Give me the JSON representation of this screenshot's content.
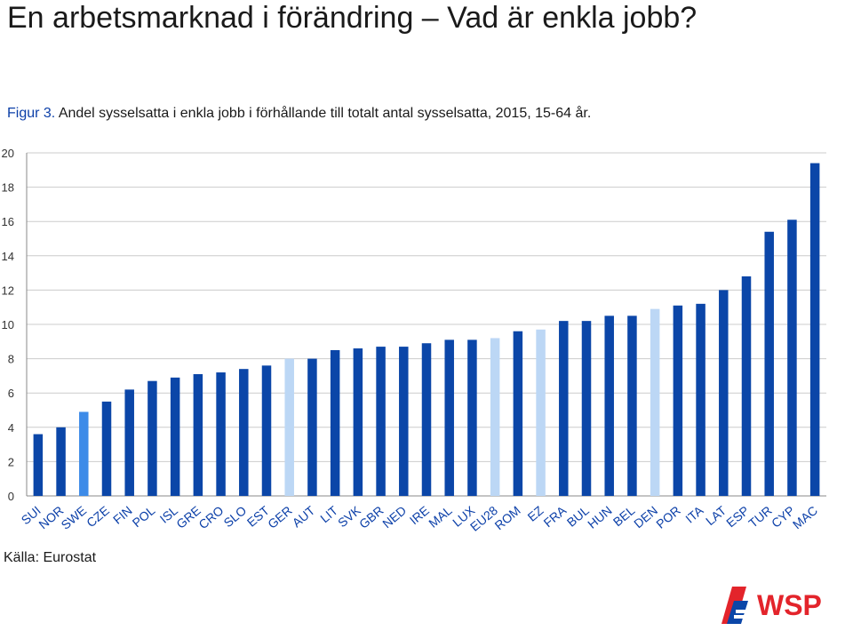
{
  "header": {
    "title": "En arbetsmarknad i förändring – Vad är enkla jobb?"
  },
  "caption": {
    "figure_label": "Figur 3.",
    "text": " Andel sysselsatta i enkla jobb i förhållande till totalt antal sysselsatta, 2015, 15-64 år."
  },
  "source": "Källa: Eurostat",
  "logo": {
    "text": "WSP",
    "color": "#e3242b"
  },
  "colors": {
    "default": "#0b46a8",
    "highlight": "#3d8be8",
    "aggregate": "#bcd7f5",
    "grid": "#cccccc",
    "axis": "#888888"
  },
  "chart_data": {
    "type": "bar",
    "title": "",
    "xlabel": "",
    "ylabel": "",
    "ylim": [
      0,
      20
    ],
    "yticks": [
      0,
      2,
      4,
      6,
      8,
      10,
      12,
      14,
      16,
      18,
      20
    ],
    "grid": true,
    "categories": [
      "SUI",
      "NOR",
      "SWE",
      "CZE",
      "FIN",
      "POL",
      "ISL",
      "GRE",
      "CRO",
      "SLO",
      "EST",
      "GER",
      "AUT",
      "LIT",
      "SVK",
      "GBR",
      "NED",
      "IRE",
      "MAL",
      "LUX",
      "EU28",
      "ROM",
      "EZ",
      "FRA",
      "BUL",
      "HUN",
      "BEL",
      "DEN",
      "POR",
      "ITA",
      "LAT",
      "ESP",
      "TUR",
      "CYP",
      "MAC"
    ],
    "values": [
      3.6,
      4.0,
      4.9,
      5.5,
      6.2,
      6.7,
      6.9,
      7.1,
      7.2,
      7.4,
      7.6,
      8.0,
      8.0,
      8.5,
      8.6,
      8.7,
      8.7,
      8.9,
      9.1,
      9.1,
      9.2,
      9.6,
      9.7,
      10.2,
      10.2,
      10.5,
      10.5,
      10.9,
      11.1,
      11.2,
      12.0,
      12.8,
      15.4,
      16.1,
      19.4
    ],
    "bar_colors": [
      "default",
      "default",
      "highlight",
      "default",
      "default",
      "default",
      "default",
      "default",
      "default",
      "default",
      "default",
      "aggregate",
      "default",
      "default",
      "default",
      "default",
      "default",
      "default",
      "default",
      "default",
      "aggregate",
      "default",
      "aggregate",
      "default",
      "default",
      "default",
      "default",
      "aggregate",
      "default",
      "default",
      "default",
      "default",
      "default",
      "default",
      "default"
    ]
  }
}
